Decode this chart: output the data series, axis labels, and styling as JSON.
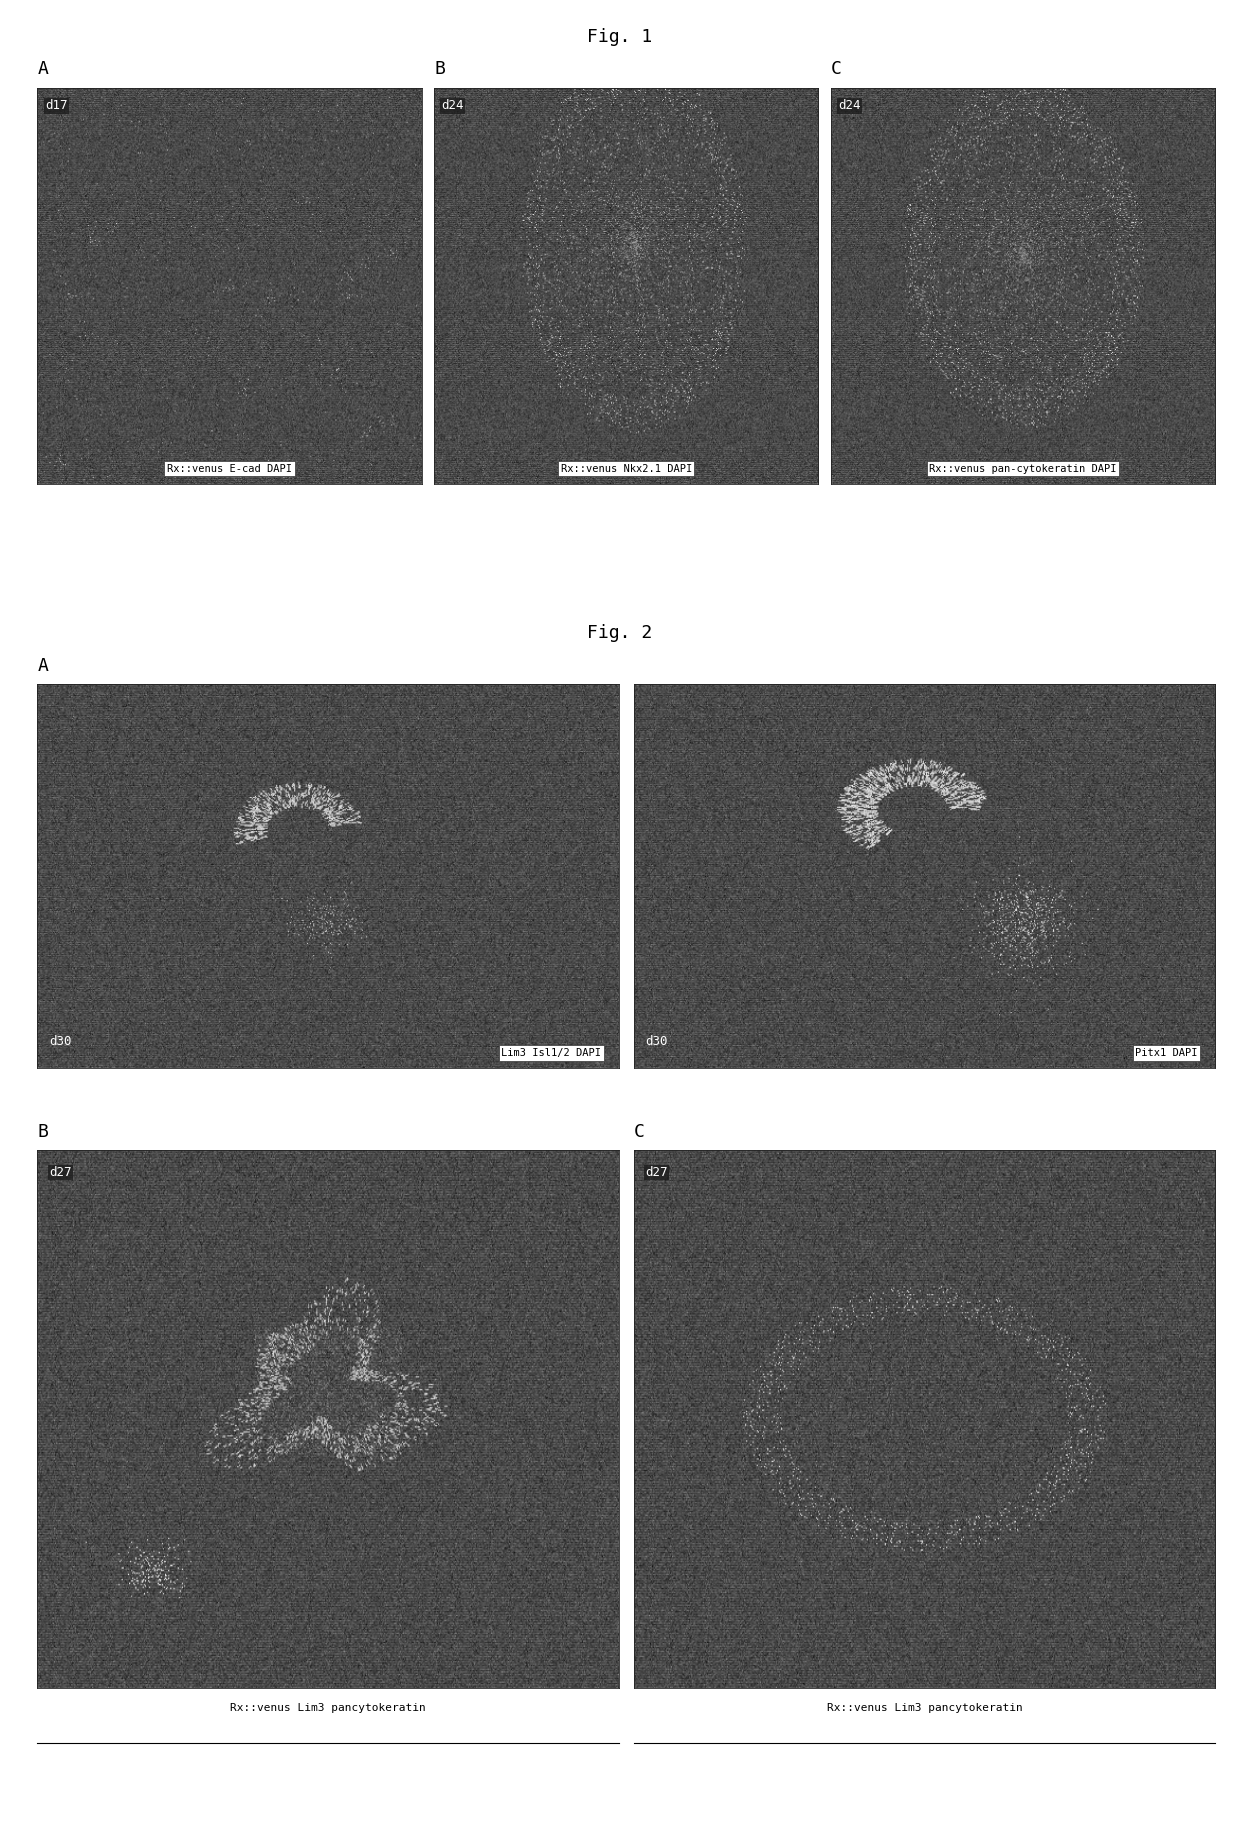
{
  "fig1_title": "Fig. 1",
  "fig2_title": "Fig. 2",
  "background_color": "#ffffff",
  "fig1_panels": [
    {
      "label": "A",
      "day_label": "d17",
      "caption": "Rx::venus E-cad DAPI",
      "style": "scattered_sparse"
    },
    {
      "label": "B",
      "day_label": "d24",
      "caption": "Rx::venus Nkx2.1 DAPI",
      "style": "tall_organoid"
    },
    {
      "label": "C",
      "day_label": "d24",
      "caption": "Rx::venus pan-cytokeratin DAPI",
      "style": "tall_organoid2"
    }
  ],
  "fig2_row1_panels": [
    {
      "label": "A",
      "day_label": "d30",
      "caption": "Lim3 Isl1/2 DAPI",
      "style": "arc_small"
    },
    {
      "label": "",
      "day_label": "d30",
      "caption": "Pitx1 DAPI",
      "style": "arc_dense"
    }
  ],
  "fig2_row2_panels": [
    {
      "label": "B",
      "day_label": "d27",
      "caption": "Rx::venus Lim3 pancytokeratin",
      "style": "squiggle"
    },
    {
      "label": "C",
      "day_label": "d27",
      "caption": "Rx::venus Lim3 pancytokeratin",
      "style": "oval_ring"
    }
  ],
  "img_bg_mean": 0.32,
  "img_bg_std": 0.07,
  "scanline_step": 2,
  "scanline_darken": 0.8
}
